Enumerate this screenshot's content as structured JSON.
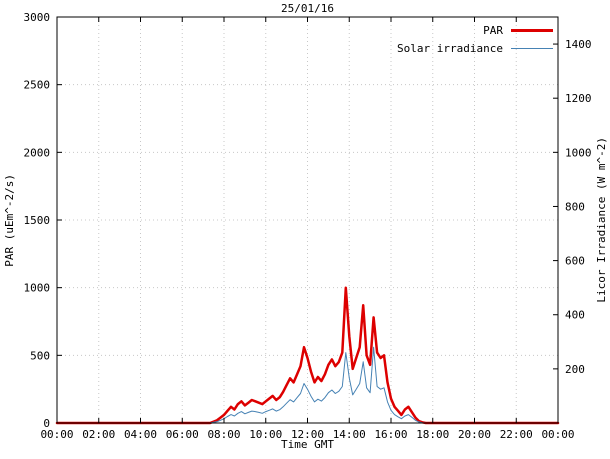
{
  "chart_data": {
    "type": "line",
    "title": "25/01/16",
    "xlabel": "Time GMT",
    "ylabel_left": "PAR (uEm^-2/s)",
    "ylabel_right": "Licor Irradiance (W m^-2)",
    "x_unit": "hours_gmt",
    "x_range": [
      0,
      24
    ],
    "y_left_range": [
      0,
      3000
    ],
    "y_right_range": [
      0,
      1500
    ],
    "x_tick_hours": [
      0,
      2,
      4,
      6,
      8,
      10,
      12,
      14,
      16,
      18,
      20,
      22,
      24
    ],
    "x_tick_labels": [
      "00:00",
      "02:00",
      "04:00",
      "06:00",
      "08:00",
      "10:00",
      "12:00",
      "14:00",
      "16:00",
      "18:00",
      "20:00",
      "22:00",
      "00:00"
    ],
    "y_left_ticks": [
      0,
      500,
      1000,
      1500,
      2000,
      2500,
      3000
    ],
    "y_right_ticks": [
      200,
      400,
      600,
      800,
      1000,
      1200,
      1400
    ],
    "grid": true,
    "grid_color": "#c8c8c8",
    "legend_position": "top-right-inside",
    "series": [
      {
        "name": "PAR",
        "axis": "left",
        "color": "#dd0000",
        "width": 2.5,
        "x_step_minutes": 10,
        "values": [
          0,
          0,
          0,
          0,
          0,
          0,
          0,
          0,
          0,
          0,
          0,
          0,
          0,
          0,
          0,
          0,
          0,
          0,
          0,
          0,
          0,
          0,
          0,
          0,
          0,
          0,
          0,
          0,
          0,
          0,
          0,
          0,
          0,
          0,
          0,
          0,
          0,
          0,
          0,
          0,
          0,
          0,
          0,
          0,
          0,
          10,
          20,
          40,
          60,
          90,
          120,
          100,
          140,
          160,
          130,
          150,
          170,
          160,
          150,
          140,
          160,
          180,
          200,
          170,
          190,
          230,
          280,
          330,
          300,
          360,
          420,
          560,
          480,
          380,
          300,
          340,
          310,
          360,
          430,
          470,
          420,
          450,
          520,
          1000,
          640,
          400,
          480,
          560,
          870,
          500,
          430,
          780,
          520,
          480,
          500,
          300,
          180,
          120,
          90,
          60,
          100,
          120,
          80,
          40,
          15,
          5,
          0,
          0,
          0,
          0,
          0,
          0,
          0,
          0,
          0,
          0,
          0,
          0,
          0,
          0,
          0,
          0,
          0,
          0,
          0,
          0,
          0,
          0,
          0,
          0,
          0,
          0,
          0,
          0,
          0,
          0,
          0,
          0,
          0,
          0,
          0,
          0,
          0,
          0,
          0
        ]
      },
      {
        "name": "Solar irradiance",
        "axis": "right",
        "color": "#4682b4",
        "width": 1,
        "x_step_minutes": 10,
        "values": [
          0,
          0,
          0,
          0,
          0,
          0,
          0,
          0,
          0,
          0,
          0,
          0,
          0,
          0,
          0,
          0,
          0,
          0,
          0,
          0,
          0,
          0,
          0,
          0,
          0,
          0,
          0,
          0,
          0,
          0,
          0,
          0,
          0,
          0,
          0,
          0,
          0,
          0,
          0,
          0,
          0,
          0,
          0,
          0,
          0,
          3,
          5,
          10,
          16,
          24,
          31,
          26,
          36,
          42,
          34,
          39,
          44,
          42,
          39,
          36,
          42,
          47,
          52,
          44,
          49,
          60,
          73,
          86,
          78,
          94,
          109,
          146,
          125,
          99,
          78,
          88,
          81,
          94,
          112,
          122,
          109,
          117,
          135,
          260,
          166,
          104,
          125,
          146,
          226,
          130,
          112,
          280,
          135,
          125,
          130,
          78,
          47,
          31,
          23,
          16,
          26,
          31,
          21,
          10,
          4,
          1,
          0,
          0,
          0,
          0,
          0,
          0,
          0,
          0,
          0,
          0,
          0,
          0,
          0,
          0,
          0,
          0,
          0,
          0,
          0,
          0,
          0,
          0,
          0,
          0,
          0,
          0,
          0,
          0,
          0,
          0,
          0,
          0,
          0,
          0,
          0,
          0,
          0,
          0,
          0
        ]
      }
    ]
  }
}
